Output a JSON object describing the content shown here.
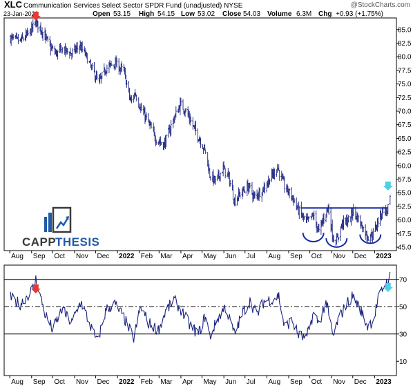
{
  "header": {
    "symbol": "XLC",
    "name": "Communication Services Select Sector SPDR Fund (unadjusted) NYSE",
    "watermark": "@StockCharts.com",
    "date": "23-Jan-2023",
    "open_label": "Open",
    "open": "53.15",
    "high_label": "High",
    "high": "54.15",
    "low_label": "Low",
    "low": "53.02",
    "close_label": "Close",
    "close": "54.03",
    "volume_label": "Volume",
    "volume": "6.3M",
    "chg_label": "Chg",
    "chg": "+0.93 (+1.75%)"
  },
  "logo": {
    "part1": "CAPP",
    "part2": "THESIS"
  },
  "colors": {
    "line": "#1a237e",
    "annotation": "#1428a0",
    "arrow_red": "#e53935",
    "arrow_cyan": "#4dd0e1",
    "logo_blue": "#1e5aa8",
    "logo_dark": "#3a3a3a"
  },
  "chart_data": [
    {
      "type": "bar",
      "subtype": "ohlc",
      "title": "XLC",
      "y_axis_side": "right",
      "ylim": [
        44.5,
        87
      ],
      "yticks": [
        45.0,
        47.5,
        50.0,
        52.5,
        55.0,
        57.5,
        60.0,
        62.5,
        65.0,
        67.5,
        70.0,
        72.5,
        75.0,
        77.5,
        80.0,
        82.5,
        85.0
      ],
      "x_tick_labels": [
        "Aug",
        "Sep",
        "Oct",
        "Nov",
        "Dec",
        "2022",
        "Feb",
        "Mar",
        "Apr",
        "May",
        "Jun",
        "Jul",
        "Aug",
        "Sep",
        "Oct",
        "Nov",
        "Dec",
        "2023"
      ],
      "bold_ticks": [
        "2022",
        "2023"
      ],
      "price_path": [
        {
          "x": "2021-08-01",
          "y": 83.5
        },
        {
          "x": "2021-08-15",
          "y": 82.8
        },
        {
          "x": "2021-08-28",
          "y": 84.2
        },
        {
          "x": "2021-09-07",
          "y": 86.3
        },
        {
          "x": "2021-09-15",
          "y": 85.0
        },
        {
          "x": "2021-09-28",
          "y": 81.6
        },
        {
          "x": "2021-10-06",
          "y": 80.6
        },
        {
          "x": "2021-10-15",
          "y": 81.4
        },
        {
          "x": "2021-10-28",
          "y": 80.6
        },
        {
          "x": "2021-11-08",
          "y": 82.0
        },
        {
          "x": "2021-11-16",
          "y": 80.5
        },
        {
          "x": "2021-11-26",
          "y": 77.6
        },
        {
          "x": "2021-12-06",
          "y": 75.2
        },
        {
          "x": "2021-12-15",
          "y": 77.8
        },
        {
          "x": "2021-12-28",
          "y": 78.8
        },
        {
          "x": "2022-01-10",
          "y": 77.3
        },
        {
          "x": "2022-01-20",
          "y": 71.6
        },
        {
          "x": "2022-01-26",
          "y": 73.4
        },
        {
          "x": "2022-02-04",
          "y": 70.2
        },
        {
          "x": "2022-02-12",
          "y": 68.4
        },
        {
          "x": "2022-02-24",
          "y": 65.0
        },
        {
          "x": "2022-03-08",
          "y": 63.8
        },
        {
          "x": "2022-03-20",
          "y": 68.0
        },
        {
          "x": "2022-03-31",
          "y": 71.2
        },
        {
          "x": "2022-04-08",
          "y": 70.1
        },
        {
          "x": "2022-04-18",
          "y": 67.3
        },
        {
          "x": "2022-04-28",
          "y": 64.8
        },
        {
          "x": "2022-05-06",
          "y": 62.5
        },
        {
          "x": "2022-05-12",
          "y": 58.4
        },
        {
          "x": "2022-05-20",
          "y": 57.0
        },
        {
          "x": "2022-05-31",
          "y": 59.5
        },
        {
          "x": "2022-06-08",
          "y": 57.8
        },
        {
          "x": "2022-06-16",
          "y": 53.5
        },
        {
          "x": "2022-06-24",
          "y": 54.8
        },
        {
          "x": "2022-07-06",
          "y": 56.2
        },
        {
          "x": "2022-07-14",
          "y": 54.2
        },
        {
          "x": "2022-07-26",
          "y": 55.6
        },
        {
          "x": "2022-08-08",
          "y": 58.0
        },
        {
          "x": "2022-08-16",
          "y": 59.8
        },
        {
          "x": "2022-08-26",
          "y": 56.2
        },
        {
          "x": "2022-09-06",
          "y": 54.3
        },
        {
          "x": "2022-09-14",
          "y": 52.0
        },
        {
          "x": "2022-09-26",
          "y": 49.5
        },
        {
          "x": "2022-10-06",
          "y": 50.8
        },
        {
          "x": "2022-10-14",
          "y": 47.8
        },
        {
          "x": "2022-10-22",
          "y": 50.9
        },
        {
          "x": "2022-10-27",
          "y": 52.3
        },
        {
          "x": "2022-11-03",
          "y": 46.8
        },
        {
          "x": "2022-11-08",
          "y": 46.1
        },
        {
          "x": "2022-11-16",
          "y": 49.4
        },
        {
          "x": "2022-11-28",
          "y": 50.2
        },
        {
          "x": "2022-12-01",
          "y": 51.8
        },
        {
          "x": "2022-12-09",
          "y": 50.2
        },
        {
          "x": "2022-12-16",
          "y": 48.4
        },
        {
          "x": "2022-12-22",
          "y": 47.0
        },
        {
          "x": "2022-12-30",
          "y": 47.4
        },
        {
          "x": "2023-01-06",
          "y": 49.9
        },
        {
          "x": "2023-01-13",
          "y": 52.0
        },
        {
          "x": "2023-01-19",
          "y": 51.4
        },
        {
          "x": "2023-01-23",
          "y": 54.03
        }
      ],
      "annotations": {
        "neckline": 52.2,
        "troughs": [
          {
            "x": "2022-10-06",
            "y": 46.5,
            "kind": "left shoulder"
          },
          {
            "x": "2022-11-08",
            "y": 45.5,
            "kind": "head"
          },
          {
            "x": "2022-12-26",
            "y": 46.2,
            "kind": "right shoulder"
          }
        ],
        "arrows": [
          {
            "x": "2021-09-07",
            "color": "red"
          },
          {
            "x": "2023-01-20",
            "color": "cyan"
          }
        ]
      }
    },
    {
      "type": "line",
      "subtype": "oscillator",
      "y_axis_side": "right",
      "ylim": [
        0,
        80
      ],
      "yticks": [
        10,
        30,
        50,
        70
      ],
      "solid_levels": [
        30,
        70
      ],
      "dashdot_levels": [
        50
      ],
      "x_tick_labels": [
        "Aug",
        "Sep",
        "Oct",
        "Nov",
        "Dec",
        "2022",
        "Feb",
        "Mar",
        "Apr",
        "May",
        "Jun",
        "Jul",
        "Aug",
        "Sep",
        "Oct",
        "Nov",
        "Dec",
        "2023"
      ],
      "bold_ticks": [
        "2022",
        "2023"
      ],
      "indicator_path": [
        {
          "x": "2021-08-01",
          "y": 57
        },
        {
          "x": "2021-08-16",
          "y": 52
        },
        {
          "x": "2021-09-01",
          "y": 62
        },
        {
          "x": "2021-09-07",
          "y": 70
        },
        {
          "x": "2021-09-20",
          "y": 45
        },
        {
          "x": "2021-10-01",
          "y": 33
        },
        {
          "x": "2021-10-14",
          "y": 48
        },
        {
          "x": "2021-10-28",
          "y": 38
        },
        {
          "x": "2021-11-10",
          "y": 54
        },
        {
          "x": "2021-11-22",
          "y": 38
        },
        {
          "x": "2021-12-03",
          "y": 24
        },
        {
          "x": "2021-12-16",
          "y": 48
        },
        {
          "x": "2021-12-28",
          "y": 52
        },
        {
          "x": "2022-01-10",
          "y": 42
        },
        {
          "x": "2022-01-24",
          "y": 27
        },
        {
          "x": "2022-02-03",
          "y": 50
        },
        {
          "x": "2022-02-14",
          "y": 38
        },
        {
          "x": "2022-02-28",
          "y": 33
        },
        {
          "x": "2022-03-10",
          "y": 46
        },
        {
          "x": "2022-03-22",
          "y": 55
        },
        {
          "x": "2022-04-01",
          "y": 48
        },
        {
          "x": "2022-04-14",
          "y": 36
        },
        {
          "x": "2022-04-26",
          "y": 30
        },
        {
          "x": "2022-05-06",
          "y": 44
        },
        {
          "x": "2022-05-12",
          "y": 28
        },
        {
          "x": "2022-05-24",
          "y": 42
        },
        {
          "x": "2022-06-03",
          "y": 50
        },
        {
          "x": "2022-06-16",
          "y": 30
        },
        {
          "x": "2022-06-28",
          "y": 46
        },
        {
          "x": "2022-07-08",
          "y": 54
        },
        {
          "x": "2022-07-18",
          "y": 44
        },
        {
          "x": "2022-07-28",
          "y": 54
        },
        {
          "x": "2022-08-10",
          "y": 56
        },
        {
          "x": "2022-08-18",
          "y": 58
        },
        {
          "x": "2022-08-26",
          "y": 35
        },
        {
          "x": "2022-09-06",
          "y": 40
        },
        {
          "x": "2022-09-14",
          "y": 30
        },
        {
          "x": "2022-09-26",
          "y": 26
        },
        {
          "x": "2022-10-06",
          "y": 45
        },
        {
          "x": "2022-10-14",
          "y": 38
        },
        {
          "x": "2022-10-24",
          "y": 54
        },
        {
          "x": "2022-11-03",
          "y": 28
        },
        {
          "x": "2022-11-10",
          "y": 40
        },
        {
          "x": "2022-11-22",
          "y": 52
        },
        {
          "x": "2022-12-01",
          "y": 58
        },
        {
          "x": "2022-12-12",
          "y": 48
        },
        {
          "x": "2022-12-22",
          "y": 36
        },
        {
          "x": "2022-12-30",
          "y": 40
        },
        {
          "x": "2023-01-06",
          "y": 55
        },
        {
          "x": "2023-01-13",
          "y": 64
        },
        {
          "x": "2023-01-23",
          "y": 72
        }
      ]
    }
  ]
}
